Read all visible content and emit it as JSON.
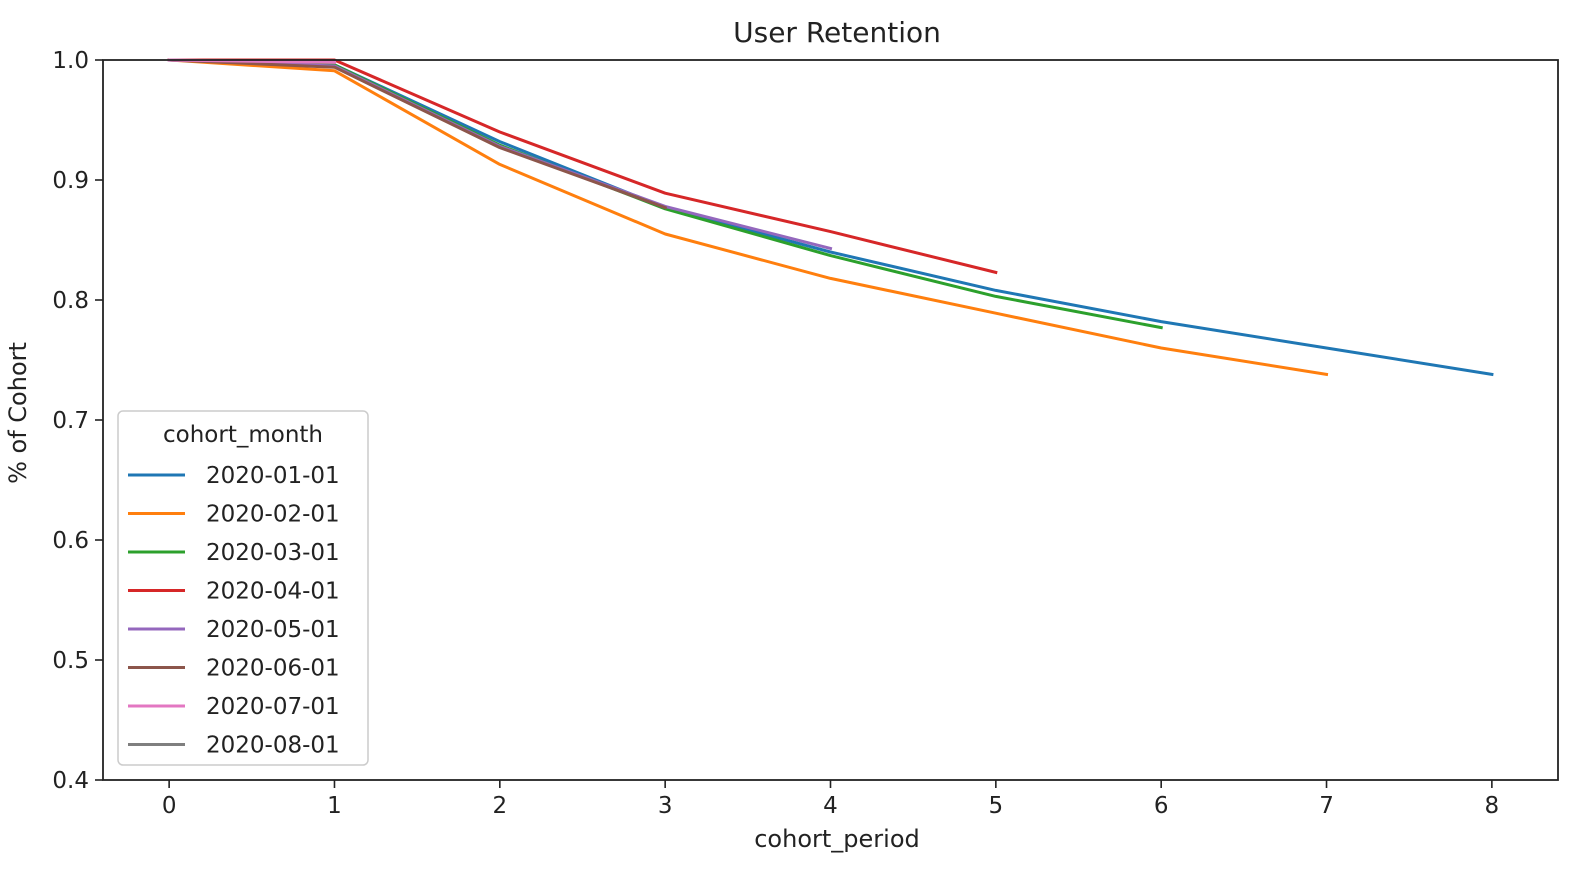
{
  "chart_data": {
    "type": "line",
    "title": "User Retention",
    "xlabel": "cohort_period",
    "ylabel": "% of Cohort",
    "xlim": [
      -0.4,
      8.4
    ],
    "ylim": [
      0.4,
      1.0
    ],
    "xticks": [
      0,
      1,
      2,
      3,
      4,
      5,
      6,
      7,
      8
    ],
    "yticks": [
      0.4,
      0.5,
      0.6,
      0.7,
      0.8,
      0.9,
      1.0
    ],
    "ytick_labels": [
      "0.4",
      "0.5",
      "0.6",
      "0.7",
      "0.8",
      "0.9",
      "1.0"
    ],
    "grid": false,
    "legend": {
      "title": "cohort_month",
      "placement": "lower-left"
    },
    "series": [
      {
        "name": "2020-01-01",
        "color": "#1f77b4",
        "x": [
          0,
          1,
          2,
          3,
          4,
          5,
          6,
          7,
          8
        ],
        "values": [
          1.0,
          0.996,
          0.932,
          0.877,
          0.84,
          0.808,
          0.782,
          0.76,
          0.738
        ]
      },
      {
        "name": "2020-02-01",
        "color": "#ff7f0e",
        "x": [
          0,
          1,
          2,
          3,
          4,
          5,
          6,
          7
        ],
        "values": [
          1.0,
          0.991,
          0.913,
          0.855,
          0.818,
          0.789,
          0.76,
          0.738
        ]
      },
      {
        "name": "2020-03-01",
        "color": "#2ca02c",
        "x": [
          0,
          1,
          2,
          3,
          4,
          5,
          6
        ],
        "values": [
          1.0,
          0.996,
          0.929,
          0.876,
          0.837,
          0.803,
          0.777
        ]
      },
      {
        "name": "2020-04-01",
        "color": "#d62728",
        "x": [
          0,
          1,
          2,
          3,
          4,
          5
        ],
        "values": [
          1.0,
          1.0,
          0.94,
          0.889,
          0.857,
          0.823
        ]
      },
      {
        "name": "2020-05-01",
        "color": "#9467bd",
        "x": [
          0,
          1,
          2,
          3,
          4
        ],
        "values": [
          1.0,
          0.995,
          0.928,
          0.878,
          0.843
        ]
      },
      {
        "name": "2020-06-01",
        "color": "#8c564b",
        "x": [
          0,
          1,
          2,
          3
        ],
        "values": [
          1.0,
          0.994,
          0.927,
          0.877
        ]
      },
      {
        "name": "2020-07-01",
        "color": "#e377c2",
        "x": [
          0,
          1
        ],
        "values": [
          1.0,
          0.998
        ]
      },
      {
        "name": "2020-08-01",
        "color": "#7f7f7f",
        "x": [
          0
        ],
        "values": [
          1.0
        ]
      }
    ]
  }
}
